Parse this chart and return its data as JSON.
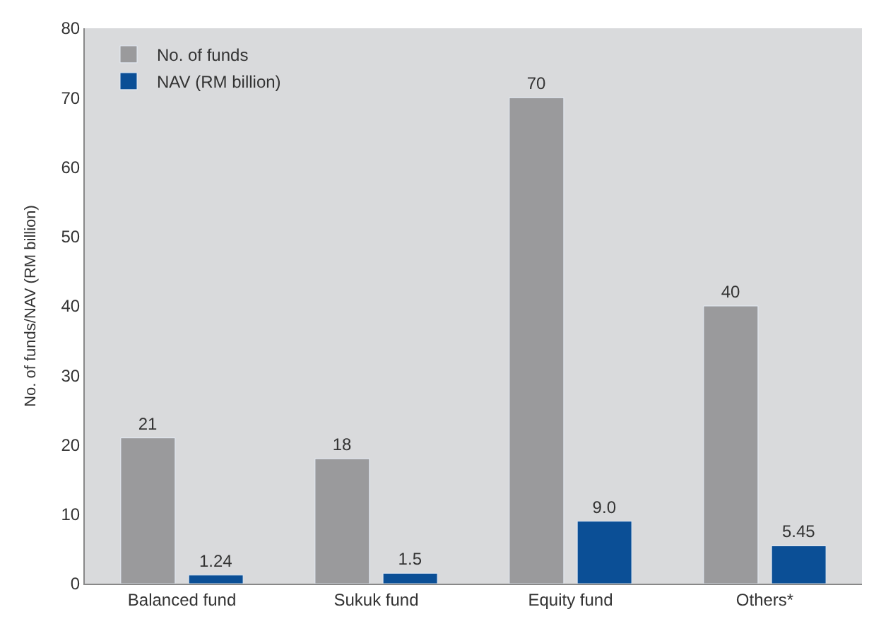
{
  "chart_data": {
    "type": "bar",
    "categories": [
      "Balanced fund",
      "Sukuk fund",
      "Equity fund",
      "Others*"
    ],
    "ylabel": "No. of funds/NAV (RM billion)",
    "ylim": [
      0,
      80
    ],
    "yticks": [
      0,
      10,
      20,
      30,
      40,
      50,
      60,
      70,
      80
    ],
    "grid": false,
    "legend": "top left",
    "series": [
      {
        "name": "No. of funds",
        "color": "#9a9a9c",
        "values": [
          21,
          18,
          70,
          40
        ],
        "value_labels": [
          "21",
          "18",
          "70",
          "40"
        ]
      },
      {
        "name": "NAV (RM billion)",
        "color": "#0b4f96",
        "values": [
          1.24,
          1.5,
          9.0,
          5.45
        ],
        "value_labels": [
          "1.24",
          "1.5",
          "9.0",
          "5.45"
        ]
      }
    ]
  }
}
